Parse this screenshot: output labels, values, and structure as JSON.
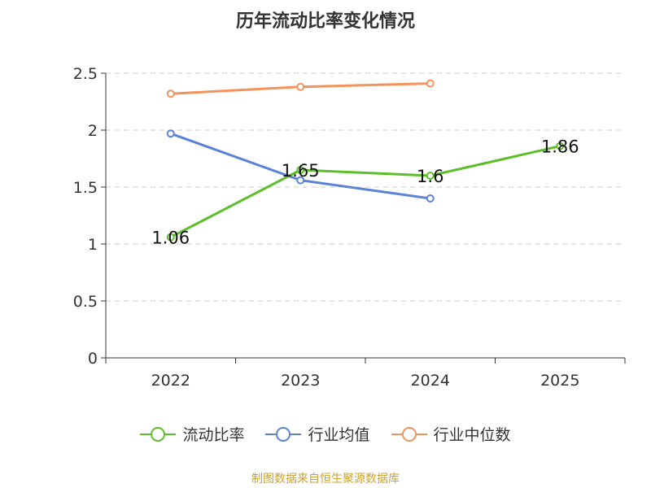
{
  "chart_data": {
    "type": "line",
    "title": "历年流动比率变化情况",
    "categories": [
      "2022",
      "2023",
      "2024",
      "2025"
    ],
    "y_ticks": [
      "0",
      "0.5",
      "1",
      "1.5",
      "2",
      "2.5"
    ],
    "ylim": [
      0,
      2.5
    ],
    "grid": true,
    "legend_position": "bottom",
    "series": [
      {
        "name": "流动比率",
        "color": "#5cbf2a",
        "values": [
          1.06,
          1.65,
          1.6,
          1.86
        ],
        "labels": [
          "1.06",
          "1.65",
          "1.6",
          "1.86"
        ]
      },
      {
        "name": "行业均值",
        "color": "#5a82d8",
        "values": [
          1.97,
          1.56,
          1.4,
          null
        ]
      },
      {
        "name": "行业中位数",
        "color": "#f4925c",
        "values": [
          2.32,
          2.38,
          2.41,
          null
        ]
      }
    ],
    "source": "制图数据来自恒生聚源数据库"
  }
}
